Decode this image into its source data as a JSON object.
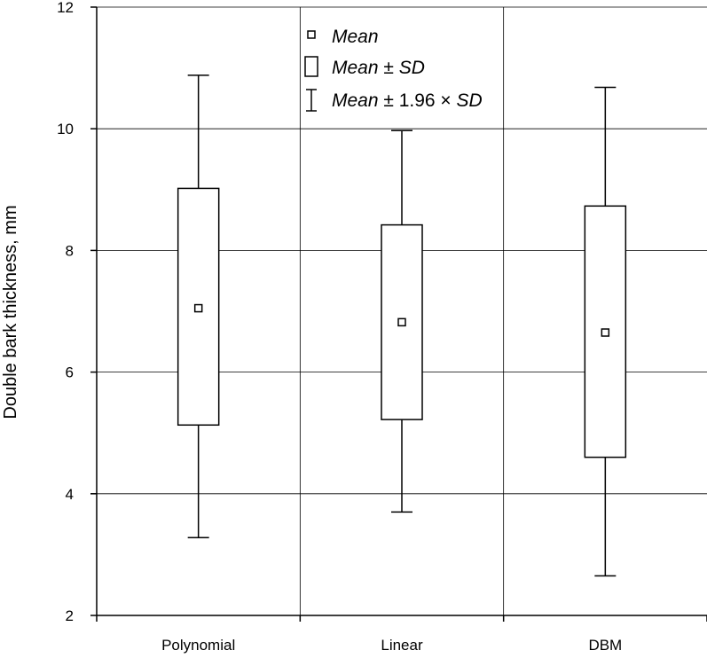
{
  "chart_data": {
    "type": "box",
    "ylabel": "Double bark thickness, mm",
    "xlabel": "",
    "ylim": [
      2,
      12
    ],
    "yticks": [
      2,
      4,
      6,
      8,
      10,
      12
    ],
    "categories": [
      "Polynomial",
      "Linear",
      "DBM"
    ],
    "mean": [
      7.05,
      6.82,
      6.65
    ],
    "mean_minus_sd": [
      5.13,
      5.22,
      4.6
    ],
    "mean_plus_sd": [
      9.02,
      8.42,
      8.73
    ],
    "mean_minus_196sd": [
      3.28,
      3.7,
      2.65
    ],
    "mean_plus_196sd": [
      10.88,
      9.97,
      10.68
    ],
    "grid": true,
    "legend": {
      "position": "top-center",
      "mean": "Mean",
      "sd_prefix": "Mean",
      "sd_suffix": " ± SD",
      "ci_prefix": "Mean",
      "ci_middle": " ± 1.96 × ",
      "ci_suffix": "SD"
    }
  }
}
